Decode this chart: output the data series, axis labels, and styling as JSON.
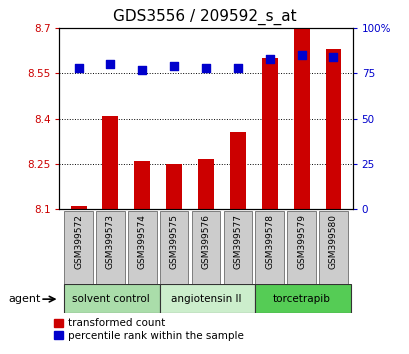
{
  "title": "GDS3556 / 209592_s_at",
  "samples": [
    "GSM399572",
    "GSM399573",
    "GSM399574",
    "GSM399575",
    "GSM399576",
    "GSM399577",
    "GSM399578",
    "GSM399579",
    "GSM399580"
  ],
  "transformed_counts": [
    8.11,
    8.41,
    8.26,
    8.25,
    8.265,
    8.355,
    8.6,
    8.7,
    8.63
  ],
  "percentile_ranks": [
    78,
    80,
    77,
    79,
    78,
    78,
    83,
    85,
    84
  ],
  "y_min": 8.1,
  "y_max": 8.7,
  "y_ticks": [
    8.1,
    8.25,
    8.4,
    8.55,
    8.7
  ],
  "y_tick_labels": [
    "8.1",
    "8.25",
    "8.4",
    "8.55",
    "8.7"
  ],
  "right_y_ticks": [
    0,
    25,
    50,
    75,
    100
  ],
  "right_y_labels": [
    "0",
    "25",
    "50",
    "75",
    "100%"
  ],
  "bar_color": "#cc0000",
  "dot_color": "#0000cc",
  "groups": [
    {
      "label": "solvent control",
      "start": 0,
      "end": 3,
      "color": "#aaddaa"
    },
    {
      "label": "angiotensin II",
      "start": 3,
      "end": 6,
      "color": "#cceecc"
    },
    {
      "label": "torcetrapib",
      "start": 6,
      "end": 9,
      "color": "#55cc55"
    }
  ],
  "agent_label": "agent",
  "legend_bar_label": "transformed count",
  "legend_dot_label": "percentile rank within the sample",
  "grid_color": "#000000",
  "bar_width": 0.5,
  "dot_size": 40,
  "background_color": "#ffffff",
  "plot_bg_color": "#ffffff",
  "tick_label_color_left": "#cc0000",
  "tick_label_color_right": "#0000cc",
  "title_fontsize": 11,
  "axis_fontsize": 7.5,
  "label_fontsize": 6.5,
  "group_fontsize": 7.5,
  "legend_fontsize": 7.5
}
